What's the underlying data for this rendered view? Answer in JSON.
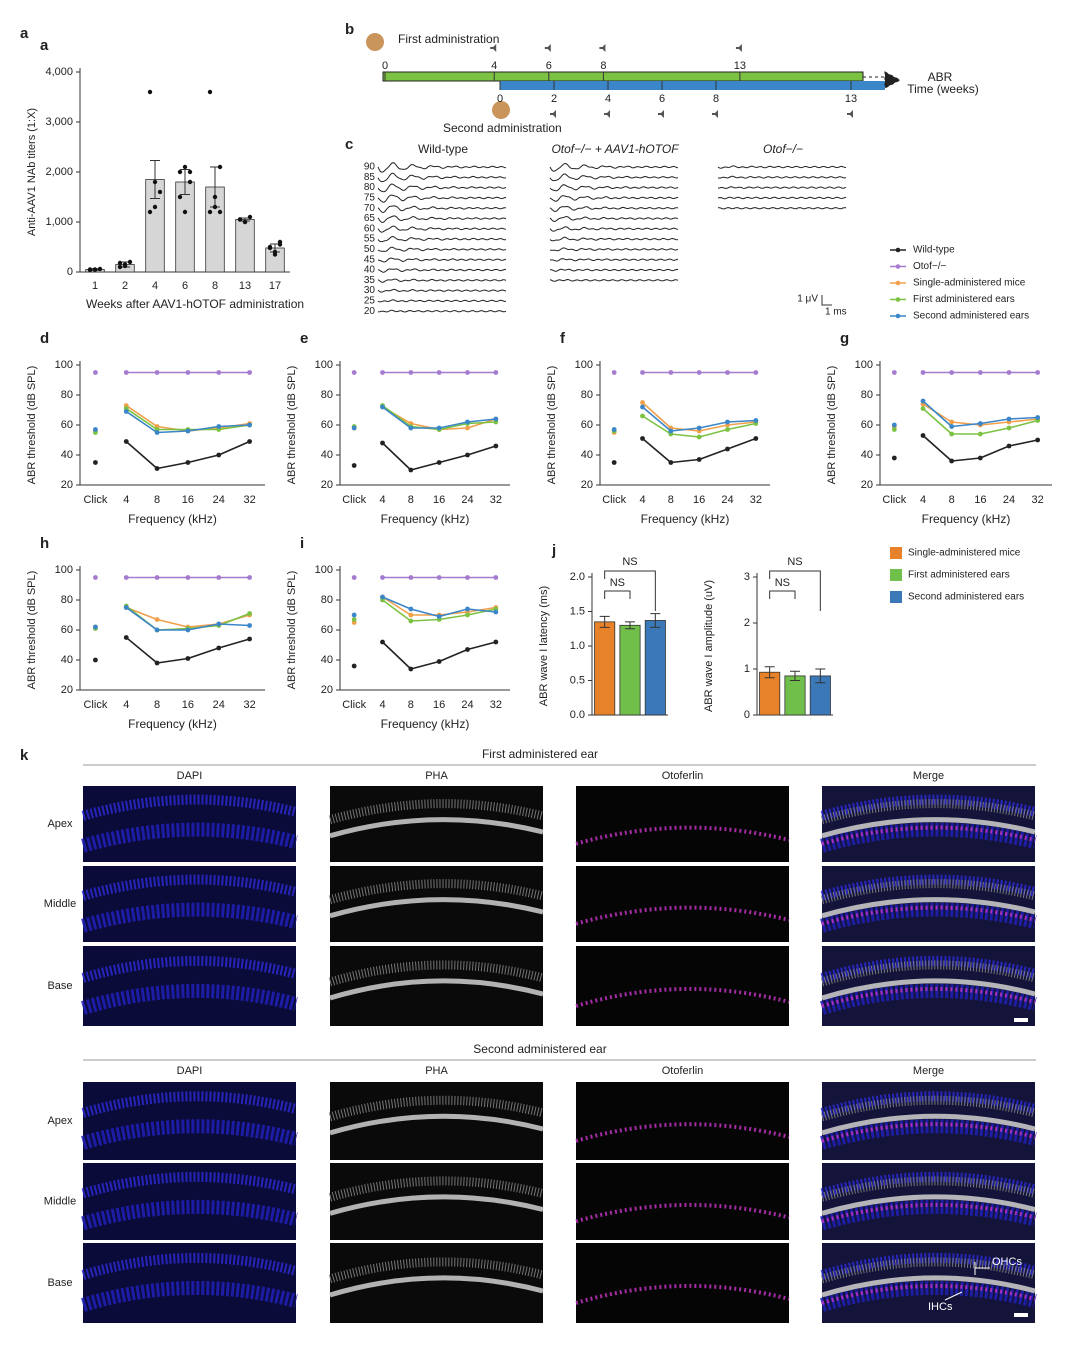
{
  "chart_data": [
    {
      "label": "a",
      "type": "bar",
      "categories": [
        "1",
        "2",
        "4",
        "6",
        "8",
        "13",
        "17"
      ],
      "values": [
        50,
        150,
        1850,
        1800,
        1700,
        1050,
        480
      ],
      "errors": [
        15,
        50,
        380,
        250,
        400,
        30,
        80
      ],
      "points": [
        [
          40,
          50,
          60,
          50,
          45
        ],
        [
          100,
          150,
          200,
          180,
          120
        ],
        [
          3600,
          1300,
          1600,
          1200,
          1800
        ],
        [
          2000,
          2100,
          1800,
          1500,
          1200,
          2000
        ],
        [
          3600,
          1300,
          1200,
          1200,
          1500,
          2100
        ],
        [
          1050,
          1000,
          1100,
          1050,
          1000
        ],
        [
          480,
          350,
          550,
          500,
          400,
          600
        ]
      ],
      "color": "#d6d6d6",
      "ylim": [
        0,
        4000
      ],
      "yticks": [
        0,
        {
          "value": 1000,
          "label": "1,000"
        },
        {
          "value": 2000,
          "label": "2,000"
        },
        {
          "value": 3000,
          "label": "3,000"
        },
        {
          "value": 4000,
          "label": "4,000"
        }
      ],
      "ylabel": "Anti-AAV1 NAb titers (1:X)",
      "xlabel": "Weeks after AAV1-hOTOF administration"
    },
    {
      "label": "d",
      "type": "line",
      "categories": [
        "Click",
        "4",
        "8",
        "16",
        "24",
        "32"
      ],
      "ylim": [
        20,
        100
      ],
      "yticks": [
        20,
        40,
        60,
        80,
        100
      ],
      "ylabel": "ABR threshold (dB SPL)",
      "xlabel": "Frequency (kHz)",
      "series": [
        {
          "name": "Wild-type",
          "color": "#222222",
          "values": [
            35,
            49,
            31,
            35,
            40,
            49
          ]
        },
        {
          "name": "Otof−/−",
          "color": "#a57bd0",
          "values": [
            95,
            95,
            95,
            95,
            95,
            95
          ]
        },
        {
          "name": "Single-administered mice",
          "color": "#f0a04b",
          "values": [
            56,
            73,
            59,
            56,
            58,
            61
          ]
        },
        {
          "name": "First administered ears",
          "color": "#7cc242",
          "values": [
            55,
            71,
            57,
            57,
            57,
            60
          ]
        },
        {
          "name": "Second administered ears",
          "color": "#3a86c8",
          "values": [
            57,
            69,
            55,
            56,
            59,
            60
          ]
        }
      ]
    },
    {
      "label": "e",
      "type": "line",
      "categories": [
        "Click",
        "4",
        "8",
        "16",
        "24",
        "32"
      ],
      "ylim": [
        20,
        100
      ],
      "yticks": [
        20,
        40,
        60,
        80,
        100
      ],
      "ylabel": "ABR threshold (dB SPL)",
      "xlabel": "Frequency (kHz)",
      "series": [
        {
          "color": "#222222",
          "values": [
            33,
            48,
            30,
            35,
            40,
            46
          ]
        },
        {
          "color": "#a57bd0",
          "values": [
            95,
            95,
            95,
            95,
            95,
            95
          ]
        },
        {
          "color": "#f0a04b",
          "values": [
            58,
            72,
            61,
            57,
            58,
            64
          ]
        },
        {
          "color": "#7cc242",
          "values": [
            59,
            73,
            59,
            57,
            61,
            62
          ]
        },
        {
          "color": "#3a86c8",
          "values": [
            58,
            72,
            58,
            58,
            62,
            64
          ]
        }
      ]
    },
    {
      "label": "f",
      "type": "line",
      "categories": [
        "Click",
        "4",
        "8",
        "16",
        "24",
        "32"
      ],
      "ylim": [
        20,
        100
      ],
      "yticks": [
        20,
        40,
        60,
        80,
        100
      ],
      "ylabel": "ABR threshold (dB SPL)",
      "xlabel": "Frequency (kHz)",
      "series": [
        {
          "color": "#222222",
          "values": [
            35,
            51,
            35,
            37,
            44,
            51
          ]
        },
        {
          "color": "#a57bd0",
          "values": [
            95,
            95,
            95,
            95,
            95,
            95
          ]
        },
        {
          "color": "#f0a04b",
          "values": [
            55,
            75,
            58,
            56,
            60,
            62
          ]
        },
        {
          "color": "#7cc242",
          "values": [
            56,
            66,
            54,
            52,
            57,
            61
          ]
        },
        {
          "color": "#3a86c8",
          "values": [
            57,
            72,
            56,
            58,
            62,
            63
          ]
        }
      ]
    },
    {
      "label": "g",
      "type": "line",
      "categories": [
        "Click",
        "4",
        "8",
        "16",
        "24",
        "32"
      ],
      "ylim": [
        20,
        100
      ],
      "yticks": [
        20,
        40,
        60,
        80,
        100
      ],
      "ylabel": "ABR threshold (dB SPL)",
      "xlabel": "Frequency (kHz)",
      "series": [
        {
          "color": "#222222",
          "values": [
            38,
            53,
            36,
            38,
            46,
            50
          ]
        },
        {
          "color": "#a57bd0",
          "values": [
            95,
            95,
            95,
            95,
            95,
            95
          ]
        },
        {
          "color": "#f0a04b",
          "values": [
            59,
            74,
            62,
            60,
            62,
            64
          ]
        },
        {
          "color": "#7cc242",
          "values": [
            57,
            71,
            54,
            54,
            58,
            63
          ]
        },
        {
          "color": "#3a86c8",
          "values": [
            60,
            76,
            59,
            61,
            64,
            65
          ]
        }
      ]
    },
    {
      "label": "h",
      "type": "line",
      "categories": [
        "Click",
        "4",
        "8",
        "16",
        "24",
        "32"
      ],
      "ylim": [
        20,
        100
      ],
      "yticks": [
        20,
        40,
        60,
        80,
        100
      ],
      "ylabel": "ABR threshold (dB SPL)",
      "xlabel": "Frequency (kHz)",
      "series": [
        {
          "color": "#222222",
          "values": [
            40,
            55,
            38,
            41,
            48,
            54
          ]
        },
        {
          "color": "#a57bd0",
          "values": [
            95,
            95,
            95,
            95,
            95,
            95
          ]
        },
        {
          "color": "#f0a04b",
          "values": [
            62,
            75,
            67,
            62,
            64,
            70
          ]
        },
        {
          "color": "#7cc242",
          "values": [
            61,
            76,
            60,
            61,
            63,
            71
          ]
        },
        {
          "color": "#3a86c8",
          "values": [
            62,
            75,
            60,
            60,
            64,
            63
          ]
        }
      ]
    },
    {
      "label": "i",
      "type": "line",
      "categories": [
        "Click",
        "4",
        "8",
        "16",
        "24",
        "32"
      ],
      "ylim": [
        20,
        100
      ],
      "yticks": [
        20,
        40,
        60,
        80,
        100
      ],
      "ylabel": "ABR threshold (dB SPL)",
      "xlabel": "Frequency (kHz)",
      "series": [
        {
          "color": "#222222",
          "values": [
            36,
            52,
            34,
            39,
            47,
            52
          ]
        },
        {
          "color": "#a57bd0",
          "values": [
            95,
            95,
            95,
            95,
            95,
            95
          ]
        },
        {
          "color": "#f0a04b",
          "values": [
            65,
            82,
            70,
            70,
            72,
            75
          ]
        },
        {
          "color": "#7cc242",
          "values": [
            67,
            80,
            66,
            67,
            70,
            74
          ]
        },
        {
          "color": "#3a86c8",
          "values": [
            70,
            82,
            74,
            69,
            74,
            72
          ]
        }
      ]
    },
    {
      "label": "j",
      "type": "bar",
      "categories": [
        "Single-administered mice",
        "First administered ears",
        "Second administered ears"
      ],
      "values": [
        1.35,
        1.3,
        1.37
      ],
      "errors": [
        0.08,
        0.05,
        0.1
      ],
      "colors": [
        "#e8822a",
        "#6fbf4a",
        "#3b78b8"
      ],
      "ylim": [
        0,
        2
      ],
      "yticks": [
        {
          "value": 0,
          "label": "0.0"
        },
        0.5,
        {
          "value": 1,
          "label": "1.0"
        },
        1.5,
        {
          "value": 2,
          "label": "2.0"
        }
      ],
      "ylabel": "ABR wave I latency (ms)",
      "annotations": [
        "NS",
        "NS"
      ]
    },
    {
      "type": "bar",
      "values": [
        0.93,
        0.85,
        0.85
      ],
      "errors": [
        0.12,
        0.1,
        0.15
      ],
      "colors": [
        "#e8822a",
        "#6fbf4a",
        "#3b78b8"
      ],
      "ylim": [
        0,
        3
      ],
      "yticks": [
        0,
        1,
        2,
        3
      ],
      "ylabel": "ABR wave I amplitude (uV)",
      "annotations": [
        "NS",
        "NS"
      ]
    }
  ],
  "timeline": {
    "label": "b",
    "first": "First administration",
    "second": "Second administration",
    "axis_title": "ABR",
    "axis_unit": "Time (weeks)",
    "top_ticks": [
      0,
      4,
      6,
      8,
      13
    ],
    "bottom_ticks": [
      0,
      2,
      4,
      6,
      8,
      13
    ]
  },
  "traces": {
    "label": "c",
    "titles": [
      "Wild-type",
      "Otof−/− + AAV1-hOTOF",
      "Otof−/−"
    ],
    "levels": [
      90,
      85,
      80,
      75,
      70,
      65,
      60,
      55,
      50,
      45,
      40,
      35,
      30,
      25,
      20
    ],
    "scale_y": "1 μV",
    "scale_x": "1 ms"
  },
  "histology": {
    "label": "k",
    "sections": [
      {
        "title": "First administered ear",
        "columns": [
          "DAPI",
          "PHA",
          "Otoferlin",
          "Merge"
        ],
        "rows": [
          "Apex",
          "Middle",
          "Base"
        ]
      },
      {
        "title": "Second administered ear",
        "columns": [
          "DAPI",
          "PHA",
          "Otoferlin",
          "Merge"
        ],
        "rows": [
          "Apex",
          "Middle",
          "Base"
        ],
        "annotations": [
          "OHCs",
          "IHCs"
        ]
      }
    ]
  }
}
